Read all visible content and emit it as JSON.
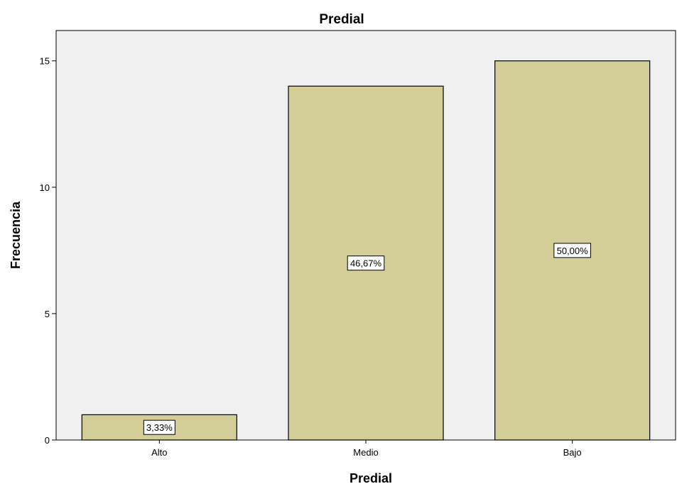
{
  "colors": {
    "plot_background": "#f0f0f0",
    "bar_fill": "#d3ce97",
    "bar_stroke": "#000000",
    "label_box_fill": "#ffffff"
  },
  "chart_data": {
    "type": "bar",
    "title": "Predial",
    "xlabel": "Predial",
    "ylabel": "Frecuencia",
    "categories": [
      "Alto",
      "Medio",
      "Bajo"
    ],
    "values": [
      1,
      14,
      15
    ],
    "data_labels": [
      "3,33%",
      "46,67%",
      "50,00%"
    ],
    "ylim": [
      0,
      16.2
    ],
    "yticks": [
      0,
      5,
      10,
      15
    ],
    "ytick_labels": [
      "0",
      "5",
      "10",
      "15"
    ],
    "grid": false,
    "legend": "none"
  }
}
